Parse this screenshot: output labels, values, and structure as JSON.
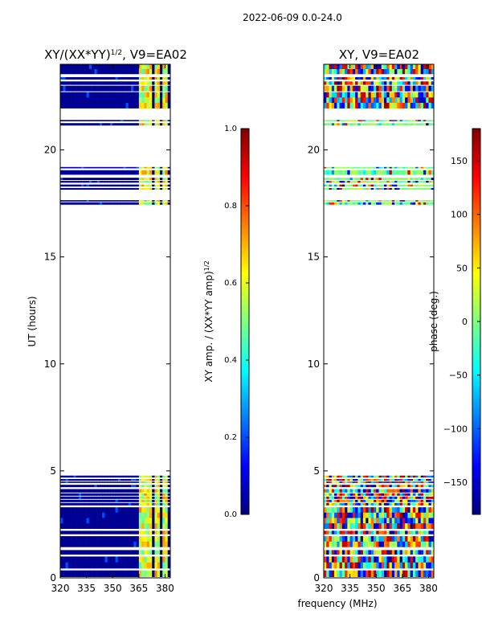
{
  "figure_title": "2022-06-09 0.0-24.0",
  "shared_xlabel": "frequency (MHz)",
  "colorscale": [
    "#00007f",
    "#0000ff",
    "#007fff",
    "#00ffff",
    "#7fff7f",
    "#ffff00",
    "#ff7f00",
    "#ff0000",
    "#7f0000"
  ],
  "chart_data": [
    {
      "type": "heatmap",
      "title": "XY/(XX*YY)",
      "title_exponent": "1/2",
      "title_suffix": ", V9=EA02",
      "ylabel": "UT (hours)",
      "xlim": [
        320,
        383
      ],
      "ylim": [
        0,
        24
      ],
      "xticks": [
        320,
        335,
        350,
        365,
        380
      ],
      "yticks": [
        0,
        5,
        10,
        15,
        20
      ],
      "colorbar": {
        "label": "XY amp. / (XX*YY amp)",
        "label_exponent": "1/2",
        "range": [
          0.0,
          1.0
        ],
        "ticks": [
          "0.0",
          "0.2",
          "0.4",
          "0.6",
          "0.8",
          "1.0"
        ]
      },
      "data_bands_hours": [
        [
          0.05,
          0.35
        ],
        [
          0.45,
          1.0
        ],
        [
          1.1,
          1.3
        ],
        [
          1.45,
          1.95
        ],
        [
          2.05,
          2.2
        ],
        [
          2.3,
          3.3
        ],
        [
          3.4,
          3.5
        ],
        [
          3.55,
          3.65
        ],
        [
          3.7,
          3.8
        ],
        [
          3.85,
          3.95
        ],
        [
          4.0,
          4.15
        ],
        [
          4.25,
          4.35
        ],
        [
          4.45,
          4.5
        ],
        [
          4.55,
          4.62
        ],
        [
          4.7,
          4.78
        ],
        [
          17.45,
          17.55
        ],
        [
          17.6,
          17.65
        ],
        [
          18.15,
          18.22
        ],
        [
          18.3,
          18.38
        ],
        [
          18.48,
          18.55
        ],
        [
          18.6,
          18.7
        ],
        [
          18.85,
          19.05
        ],
        [
          19.15,
          19.2
        ],
        [
          21.15,
          21.25
        ],
        [
          21.35,
          21.4
        ],
        [
          21.95,
          22.7
        ],
        [
          22.75,
          23.0
        ],
        [
          23.05,
          23.2
        ],
        [
          23.3,
          23.4
        ],
        [
          23.55,
          24.0
        ]
      ],
      "bright_freq_windows_mhz": [
        [
          365,
          369
        ],
        [
          369.5,
          372.5
        ],
        [
          374,
          377
        ],
        [
          378,
          381
        ]
      ]
    },
    {
      "type": "heatmap",
      "title": "XY, V9=EA02",
      "ylabel": "",
      "xlim": [
        320,
        383
      ],
      "ylim": [
        0,
        24
      ],
      "xticks": [
        320,
        335,
        350,
        365,
        380
      ],
      "yticks": [
        0,
        5,
        10,
        15,
        20
      ],
      "colorbar": {
        "label": "phase (deg.)",
        "range": [
          -180,
          180
        ],
        "ticks": [
          "150",
          "100",
          "50",
          "0",
          "−50",
          "−100",
          "−150"
        ]
      },
      "data_bands_hours": [
        [
          0.05,
          0.35
        ],
        [
          0.45,
          1.0
        ],
        [
          1.1,
          1.3
        ],
        [
          1.45,
          1.95
        ],
        [
          2.05,
          2.2
        ],
        [
          2.3,
          3.3
        ],
        [
          3.4,
          3.5
        ],
        [
          3.55,
          3.65
        ],
        [
          3.7,
          3.8
        ],
        [
          3.85,
          3.95
        ],
        [
          4.0,
          4.15
        ],
        [
          4.25,
          4.35
        ],
        [
          4.45,
          4.5
        ],
        [
          4.55,
          4.62
        ],
        [
          4.7,
          4.78
        ],
        [
          17.45,
          17.55
        ],
        [
          17.6,
          17.65
        ],
        [
          18.15,
          18.22
        ],
        [
          18.3,
          18.38
        ],
        [
          18.48,
          18.55
        ],
        [
          18.6,
          18.7
        ],
        [
          18.85,
          19.05
        ],
        [
          19.15,
          19.2
        ],
        [
          21.15,
          21.25
        ],
        [
          21.35,
          21.4
        ],
        [
          21.95,
          22.7
        ],
        [
          22.75,
          23.0
        ],
        [
          23.05,
          23.2
        ],
        [
          23.3,
          23.4
        ],
        [
          23.55,
          24.0
        ]
      ]
    }
  ]
}
